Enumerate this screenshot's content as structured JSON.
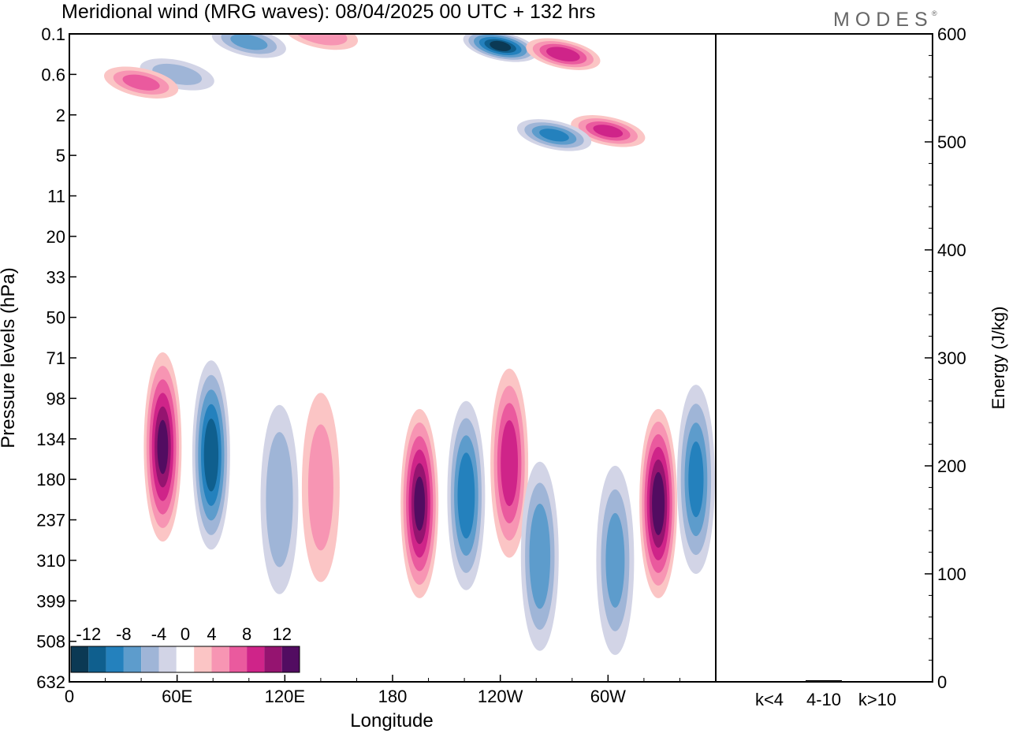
{
  "header": {
    "title": "Meridional wind (MRG waves):  08/04/2025  00 UTC  + 132 hrs",
    "brand": "MODES",
    "brand_mark": "®"
  },
  "chart_data": [
    {
      "type": "heatmap",
      "title": "Meridional wind (MRG waves):  08/04/2025  00 UTC  + 132 hrs",
      "xlabel": "Longitude",
      "ylabel": "Pressure levels (hPa)",
      "x_ticks": [
        "0",
        "60E",
        "120E",
        "180",
        "120W",
        "60W"
      ],
      "x_tick_values": [
        0,
        60,
        120,
        180,
        240,
        300
      ],
      "xlim": [
        0,
        360
      ],
      "y_ticks": [
        "0.1",
        "0.6",
        "2",
        "5",
        "11",
        "20",
        "33",
        "50",
        "71",
        "98",
        "134",
        "180",
        "237",
        "310",
        "399",
        "508",
        "632"
      ],
      "y_scale": "model levels (top to bottom)",
      "grid": false,
      "colorbar": {
        "placement": "bottom-left",
        "tick_labels": [
          "-12",
          "-8",
          "-4",
          "0",
          "4",
          "8",
          "12"
        ],
        "tick_positions": [
          -12,
          -8,
          -4,
          0,
          4,
          8,
          12
        ],
        "levels": [
          -14,
          -12,
          -10,
          -8,
          -6,
          -4,
          -2,
          2,
          4,
          6,
          8,
          10,
          12,
          14
        ],
        "colors": [
          "#0b3954",
          "#0f5f8e",
          "#2481bd",
          "#5d9ccc",
          "#9fb5d7",
          "#d2d4e6",
          "#ffffff",
          "#fbc5c5",
          "#f795b3",
          "#ea5a9e",
          "#cf2489",
          "#951470",
          "#520c61"
        ]
      },
      "features": [
        {
          "sign": "negative",
          "lon": 60,
          "level": 1.0,
          "amp": -4
        },
        {
          "sign": "positive",
          "lon": 40,
          "level": 1.2,
          "amp": 6
        },
        {
          "sign": "negative",
          "lon": 100,
          "level": 0.2,
          "amp": -6
        },
        {
          "sign": "positive",
          "lon": 140,
          "level": 0.0,
          "amp": 5
        },
        {
          "sign": "negative",
          "lon": 240,
          "level": 0.3,
          "amp": -12
        },
        {
          "sign": "positive",
          "lon": 275,
          "level": 0.5,
          "amp": 9
        },
        {
          "sign": "positive",
          "lon": 300,
          "level": 2.4,
          "amp": 8
        },
        {
          "sign": "negative",
          "lon": 270,
          "level": 2.5,
          "amp": -8
        },
        {
          "sign": "positive",
          "lon": 52,
          "level": 10.2,
          "amp": 12
        },
        {
          "sign": "negative",
          "lon": 79,
          "level": 10.4,
          "amp": -11
        },
        {
          "sign": "negative",
          "lon": 117,
          "level": 11.5,
          "amp": -5
        },
        {
          "sign": "positive",
          "lon": 140,
          "level": 11.2,
          "amp": 4
        },
        {
          "sign": "positive",
          "lon": 195,
          "level": 11.6,
          "amp": 12
        },
        {
          "sign": "negative",
          "lon": 221,
          "level": 11.4,
          "amp": -9
        },
        {
          "sign": "positive",
          "lon": 245,
          "level": 10.6,
          "amp": 9
        },
        {
          "sign": "negative",
          "lon": 262,
          "level": 12.9,
          "amp": -7
        },
        {
          "sign": "negative",
          "lon": 304,
          "level": 13.0,
          "amp": -6
        },
        {
          "sign": "positive",
          "lon": 328,
          "level": 11.6,
          "amp": 13
        },
        {
          "sign": "negative",
          "lon": 349,
          "level": 11.0,
          "amp": -8
        }
      ]
    },
    {
      "type": "bar",
      "xlabel": "",
      "ylabel": "Energy (J/kg)",
      "categories": [
        "k<4",
        "4-10",
        "k>10"
      ],
      "values": [
        0.5,
        1.5,
        0.5
      ],
      "ylim": [
        0,
        600
      ],
      "y_ticks": [
        0,
        100,
        200,
        300,
        400,
        500,
        600
      ]
    }
  ]
}
